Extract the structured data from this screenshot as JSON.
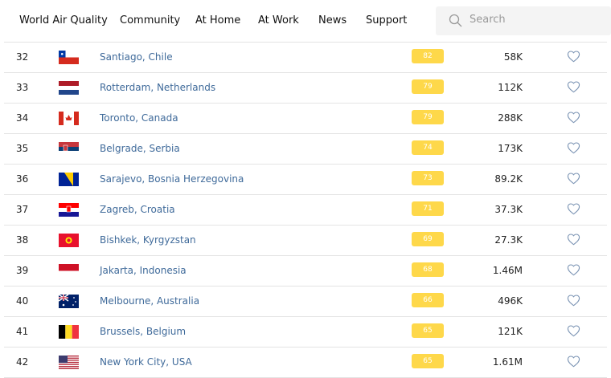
{
  "nav": {
    "items": [
      "World Air Quality",
      "Community",
      "At Home",
      "At Work",
      "News",
      "Support"
    ],
    "search_placeholder": "Search"
  },
  "badge_color": "#fed84a",
  "rows": [
    {
      "rank": "32",
      "flag": "chile",
      "city": "Santiago, Chile",
      "aqi": "82",
      "population": "58K"
    },
    {
      "rank": "33",
      "flag": "netherlands",
      "city": "Rotterdam, Netherlands",
      "aqi": "79",
      "population": "112K"
    },
    {
      "rank": "34",
      "flag": "canada",
      "city": "Toronto, Canada",
      "aqi": "79",
      "population": "288K"
    },
    {
      "rank": "35",
      "flag": "serbia",
      "city": "Belgrade, Serbia",
      "aqi": "74",
      "population": "173K"
    },
    {
      "rank": "36",
      "flag": "bosnia",
      "city": "Sarajevo, Bosnia Herzegovina",
      "aqi": "73",
      "population": "89.2K"
    },
    {
      "rank": "37",
      "flag": "croatia",
      "city": "Zagreb, Croatia",
      "aqi": "71",
      "population": "37.3K"
    },
    {
      "rank": "38",
      "flag": "kyrgyzstan",
      "city": "Bishkek, Kyrgyzstan",
      "aqi": "69",
      "population": "27.3K"
    },
    {
      "rank": "39",
      "flag": "indonesia",
      "city": "Jakarta, Indonesia",
      "aqi": "68",
      "population": "1.46M"
    },
    {
      "rank": "40",
      "flag": "australia",
      "city": "Melbourne, Australia",
      "aqi": "66",
      "population": "496K"
    },
    {
      "rank": "41",
      "flag": "belgium",
      "city": "Brussels, Belgium",
      "aqi": "65",
      "population": "121K"
    },
    {
      "rank": "42",
      "flag": "usa",
      "city": "New York City, USA",
      "aqi": "65",
      "population": "1.61M"
    }
  ]
}
